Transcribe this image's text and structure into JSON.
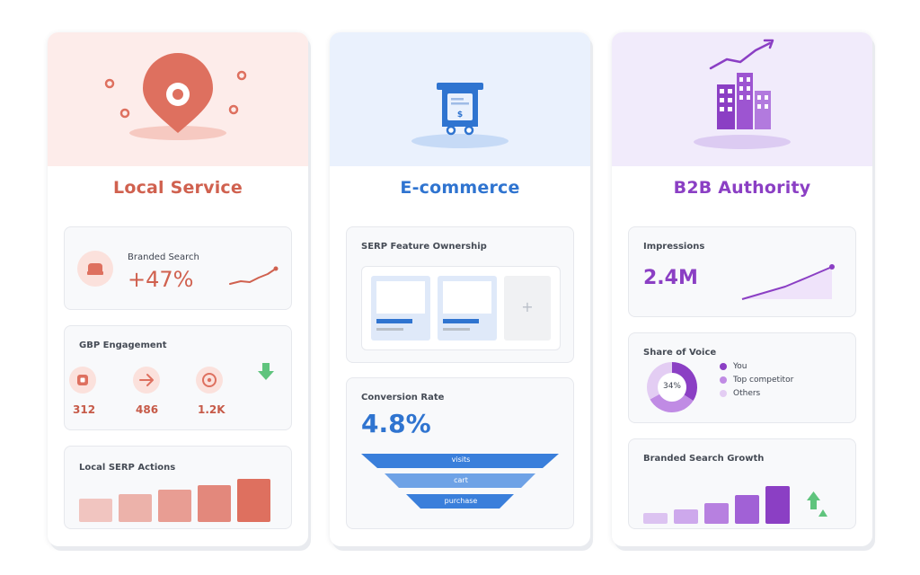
{
  "local": {
    "title": "Local Service",
    "branded_search": {
      "label": "Branded Search",
      "value": "+47%"
    },
    "gbp": {
      "label": "GBP Engagement",
      "stats": [
        {
          "icon": "phone-icon",
          "value": "312"
        },
        {
          "icon": "arrow-right-icon",
          "value": "486"
        },
        {
          "icon": "target-icon",
          "value": "1.2K"
        }
      ]
    },
    "serp_actions": {
      "label": "Local SERP Actions",
      "values": [
        26,
        31,
        36,
        41,
        48
      ]
    }
  },
  "ecommerce": {
    "title": "E-commerce",
    "serp_feature": {
      "label": "SERP Feature Ownership",
      "plus": "+"
    },
    "conversion": {
      "label": "Conversion Rate",
      "value": "4.8%",
      "funnel": [
        "visits",
        "cart",
        "purchase"
      ]
    }
  },
  "b2b": {
    "title": "B2B Authority",
    "impressions": {
      "label": "Impressions",
      "value": "2.4M"
    },
    "share_of_voice": {
      "label": "Share of Voice",
      "center": "34%",
      "legend": [
        {
          "label": "You",
          "color": "#8b3fc4",
          "value": 34
        },
        {
          "label": "Top competitor",
          "color": "#c08be4",
          "value": 33
        },
        {
          "label": "Others",
          "color": "#e3cdf3",
          "value": 33
        }
      ]
    },
    "growth": {
      "label": "Branded Search Growth",
      "values": [
        12,
        16,
        23,
        32,
        42
      ]
    }
  },
  "colors": {
    "local_accent": "#d0614f",
    "ecom_accent": "#2f74d0",
    "b2b_accent": "#8b3fc4",
    "up_green": "#5fc47d"
  }
}
